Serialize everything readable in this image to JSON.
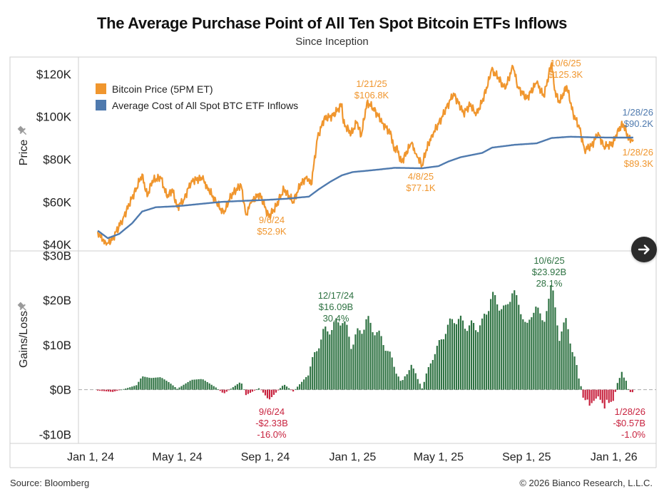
{
  "header": {
    "title": "The Average Purchase Point of All Ten Spot Bitcoin ETFs Inflows",
    "subtitle": "Since Inception"
  },
  "footer": {
    "source": "Source: Bloomberg",
    "copyright": "© 2026 Bianco Research, L.L.C."
  },
  "controls": {
    "next_icon": "arrow-right-icon"
  },
  "colors": {
    "price": "#F0962E",
    "cost": "#4F7AAE",
    "gain": "#2E7242",
    "loss": "#C8233F"
  },
  "chart_data": [
    {
      "type": "line",
      "ylabel": "Price",
      "ylim": [
        37000,
        128000
      ],
      "yticks": [
        40000,
        60000,
        80000,
        100000,
        120000
      ],
      "ytick_labels": [
        "$40K",
        "$60K",
        "$80K",
        "$100K",
        "$120K"
      ],
      "legend": {
        "position": "top-left",
        "entries": [
          "Bitcoin Price (5PM ET)",
          "Average Cost of All Spot BTC ETF Inflows"
        ]
      },
      "series": [
        {
          "name": "Bitcoin Price (5PM ET)",
          "points": [
            [
              "2024-01-11",
              46000
            ],
            [
              "2024-01-18",
              42000
            ],
            [
              "2024-01-23",
              39800
            ],
            [
              "2024-02-01",
              43000
            ],
            [
              "2024-02-15",
              52000
            ],
            [
              "2024-02-28",
              62000
            ],
            [
              "2024-03-05",
              66500
            ],
            [
              "2024-03-13",
              73000
            ],
            [
              "2024-03-20",
              62500
            ],
            [
              "2024-03-27",
              70000
            ],
            [
              "2024-04-08",
              71500
            ],
            [
              "2024-04-17",
              62000
            ],
            [
              "2024-04-24",
              66000
            ],
            [
              "2024-05-01",
              57500
            ],
            [
              "2024-05-10",
              61000
            ],
            [
              "2024-05-21",
              70000
            ],
            [
              "2024-06-05",
              71000
            ],
            [
              "2024-06-12",
              67000
            ],
            [
              "2024-06-24",
              60000
            ],
            [
              "2024-07-05",
              54500
            ],
            [
              "2024-07-15",
              63000
            ],
            [
              "2024-07-29",
              68000
            ],
            [
              "2024-08-05",
              54000
            ],
            [
              "2024-08-12",
              59500
            ],
            [
              "2024-08-24",
              64000
            ],
            [
              "2024-09-06",
              52900
            ],
            [
              "2024-09-16",
              58000
            ],
            [
              "2024-09-27",
              66000
            ],
            [
              "2024-10-10",
              60000
            ],
            [
              "2024-10-20",
              68000
            ],
            [
              "2024-10-29",
              72000
            ],
            [
              "2024-11-04",
              68000
            ],
            [
              "2024-11-13",
              90000
            ],
            [
              "2024-11-22",
              99000
            ],
            [
              "2024-12-05",
              100500
            ],
            [
              "2024-12-17",
              106000
            ],
            [
              "2024-12-19",
              97000
            ],
            [
              "2024-12-30",
              92000
            ],
            [
              "2025-01-07",
              97500
            ],
            [
              "2025-01-13",
              91000
            ],
            [
              "2025-01-21",
              106800
            ],
            [
              "2025-01-30",
              104000
            ],
            [
              "2025-02-12",
              97000
            ],
            [
              "2025-02-24",
              91500
            ],
            [
              "2025-02-28",
              84000
            ],
            [
              "2025-03-03",
              86000
            ],
            [
              "2025-03-10",
              78500
            ],
            [
              "2025-03-24",
              87500
            ],
            [
              "2025-03-31",
              82500
            ],
            [
              "2025-04-08",
              77100
            ],
            [
              "2025-04-14",
              84500
            ],
            [
              "2025-04-22",
              91500
            ],
            [
              "2025-05-01",
              96500
            ],
            [
              "2025-05-12",
              104000
            ],
            [
              "2025-05-22",
              111000
            ],
            [
              "2025-06-05",
              101500
            ],
            [
              "2025-06-15",
              106000
            ],
            [
              "2025-06-22",
              100500
            ],
            [
              "2025-07-01",
              107000
            ],
            [
              "2025-07-11",
              117500
            ],
            [
              "2025-07-14",
              122000
            ],
            [
              "2025-07-23",
              118500
            ],
            [
              "2025-08-02",
              113000
            ],
            [
              "2025-08-13",
              123500
            ],
            [
              "2025-08-20",
              114000
            ],
            [
              "2025-09-01",
              108500
            ],
            [
              "2025-09-15",
              116000
            ],
            [
              "2025-09-25",
              109500
            ],
            [
              "2025-10-06",
              125300
            ],
            [
              "2025-10-10",
              112500
            ],
            [
              "2025-10-17",
              106500
            ],
            [
              "2025-10-27",
              114500
            ],
            [
              "2025-11-05",
              101500
            ],
            [
              "2025-11-14",
              94500
            ],
            [
              "2025-11-21",
              84500
            ],
            [
              "2025-12-01",
              86500
            ],
            [
              "2025-12-10",
              92500
            ],
            [
              "2025-12-18",
              86000
            ],
            [
              "2025-12-31",
              87500
            ],
            [
              "2026-01-06",
              93500
            ],
            [
              "2026-01-14",
              96500
            ],
            [
              "2026-01-22",
              89500
            ],
            [
              "2026-01-28",
              89300
            ]
          ]
        },
        {
          "name": "Average Cost of All Spot BTC ETF Inflows",
          "points": [
            [
              "2024-01-11",
              46500
            ],
            [
              "2024-01-25",
              43000
            ],
            [
              "2024-02-10",
              45000
            ],
            [
              "2024-02-28",
              50000
            ],
            [
              "2024-03-13",
              55500
            ],
            [
              "2024-04-01",
              57500
            ],
            [
              "2024-05-01",
              58000
            ],
            [
              "2024-06-01",
              59000
            ],
            [
              "2024-07-01",
              60000
            ],
            [
              "2024-08-01",
              60500
            ],
            [
              "2024-09-06",
              61000
            ],
            [
              "2024-10-01",
              61500
            ],
            [
              "2024-11-01",
              62500
            ],
            [
              "2024-11-15",
              66000
            ],
            [
              "2024-12-01",
              69500
            ],
            [
              "2024-12-17",
              72500
            ],
            [
              "2025-01-01",
              74000
            ],
            [
              "2025-02-01",
              75000
            ],
            [
              "2025-03-01",
              76000
            ],
            [
              "2025-04-08",
              75800
            ],
            [
              "2025-05-01",
              76800
            ],
            [
              "2025-05-15",
              79000
            ],
            [
              "2025-06-01",
              81000
            ],
            [
              "2025-07-01",
              83000
            ],
            [
              "2025-07-15",
              85500
            ],
            [
              "2025-08-15",
              86800
            ],
            [
              "2025-09-15",
              87500
            ],
            [
              "2025-10-06",
              90000
            ],
            [
              "2025-11-01",
              90600
            ],
            [
              "2025-12-01",
              90300
            ],
            [
              "2026-01-01",
              90200
            ],
            [
              "2026-01-28",
              90200
            ]
          ]
        }
      ],
      "annotations": [
        {
          "date": "9/6/24",
          "value": "$52.9K",
          "series": "Bitcoin Price (5PM ET)"
        },
        {
          "date": "1/21/25",
          "value": "$106.8K",
          "series": "Bitcoin Price (5PM ET)"
        },
        {
          "date": "4/8/25",
          "value": "$77.1K",
          "series": "Bitcoin Price (5PM ET)"
        },
        {
          "date": "10/6/25",
          "value": "$125.3K",
          "series": "Bitcoin Price (5PM ET)"
        },
        {
          "date": "1/28/26",
          "value": "$90.2K",
          "series": "Average Cost of All Spot BTC ETF Inflows"
        },
        {
          "date": "1/28/26",
          "value": "$89.3K",
          "series": "Bitcoin Price (5PM ET)"
        }
      ]
    },
    {
      "type": "bar",
      "ylabel": "Gains/Loss",
      "ylim": [
        -12,
        31
      ],
      "yticks": [
        -10,
        0,
        10,
        20,
        30
      ],
      "ytick_labels": [
        "-$10B",
        "$0B",
        "$10B",
        "$20B",
        "$30B"
      ],
      "units": "USD billions",
      "series": [
        {
          "points": [
            [
              "2024-01-11",
              -0.2
            ],
            [
              "2024-02-01",
              -0.5
            ],
            [
              "2024-02-20",
              0.3
            ],
            [
              "2024-03-05",
              1.0
            ],
            [
              "2024-03-13",
              3.0
            ],
            [
              "2024-03-25",
              2.6
            ],
            [
              "2024-04-08",
              2.8
            ],
            [
              "2024-04-20",
              1.6
            ],
            [
              "2024-05-01",
              0.2
            ],
            [
              "2024-05-21",
              2.2
            ],
            [
              "2024-06-05",
              2.4
            ],
            [
              "2024-06-24",
              0.5
            ],
            [
              "2024-07-05",
              -0.9
            ],
            [
              "2024-07-29",
              1.8
            ],
            [
              "2024-08-05",
              -1.2
            ],
            [
              "2024-08-24",
              0.4
            ],
            [
              "2024-09-06",
              -2.33
            ],
            [
              "2024-09-27",
              1.2
            ],
            [
              "2024-10-10",
              -0.4
            ],
            [
              "2024-10-29",
              3.0
            ],
            [
              "2024-11-13",
              9.5
            ],
            [
              "2024-11-22",
              13.0
            ],
            [
              "2024-12-05",
              14.0
            ],
            [
              "2024-12-17",
              16.09
            ],
            [
              "2024-12-30",
              10.5
            ],
            [
              "2025-01-07",
              12.0
            ],
            [
              "2025-01-21",
              15.5
            ],
            [
              "2025-02-12",
              11.0
            ],
            [
              "2025-02-24",
              7.0
            ],
            [
              "2025-03-10",
              1.6
            ],
            [
              "2025-03-24",
              5.5
            ],
            [
              "2025-04-08",
              0.3
            ],
            [
              "2025-04-22",
              7.0
            ],
            [
              "2025-05-12",
              13.5
            ],
            [
              "2025-05-22",
              16.0
            ],
            [
              "2025-06-15",
              14.0
            ],
            [
              "2025-07-01",
              14.5
            ],
            [
              "2025-07-14",
              21.0
            ],
            [
              "2025-08-02",
              17.5
            ],
            [
              "2025-08-13",
              22.5
            ],
            [
              "2025-09-01",
              14.0
            ],
            [
              "2025-09-15",
              19.0
            ],
            [
              "2025-09-25",
              14.5
            ],
            [
              "2025-10-06",
              23.92
            ],
            [
              "2025-10-17",
              11.5
            ],
            [
              "2025-10-27",
              16.0
            ],
            [
              "2025-11-05",
              7.5
            ],
            [
              "2025-11-14",
              2.5
            ],
            [
              "2025-11-21",
              -3.5
            ],
            [
              "2025-12-01",
              -3.0
            ],
            [
              "2025-12-10",
              -1.5
            ],
            [
              "2025-12-18",
              -3.5
            ],
            [
              "2025-12-31",
              -2.5
            ],
            [
              "2026-01-06",
              1.5
            ],
            [
              "2026-01-14",
              4.5
            ],
            [
              "2026-01-22",
              -0.5
            ],
            [
              "2026-01-28",
              -0.57
            ]
          ]
        }
      ],
      "annotations": [
        {
          "date": "9/6/24",
          "value": "-$2.33B",
          "pct": "-16.0%"
        },
        {
          "date": "12/17/24",
          "value": "$16.09B",
          "pct": "30.4%"
        },
        {
          "date": "10/6/25",
          "value": "$23.92B",
          "pct": "28.1%"
        },
        {
          "date": "1/28/26",
          "value": "-$0.57B",
          "pct": "-1.0%"
        }
      ]
    }
  ],
  "x_axis": {
    "xlim": [
      "2023-12-15",
      "2026-03-01"
    ],
    "ticks": [
      "2024-01-01",
      "2024-05-01",
      "2024-09-01",
      "2025-01-01",
      "2025-05-01",
      "2025-09-01",
      "2026-01-01"
    ],
    "tick_labels": [
      "Jan 1, 24",
      "May 1, 24",
      "Sep 1, 24",
      "Jan 1, 25",
      "May 1, 25",
      "Sep 1, 25",
      "Jan 1, 26"
    ]
  }
}
